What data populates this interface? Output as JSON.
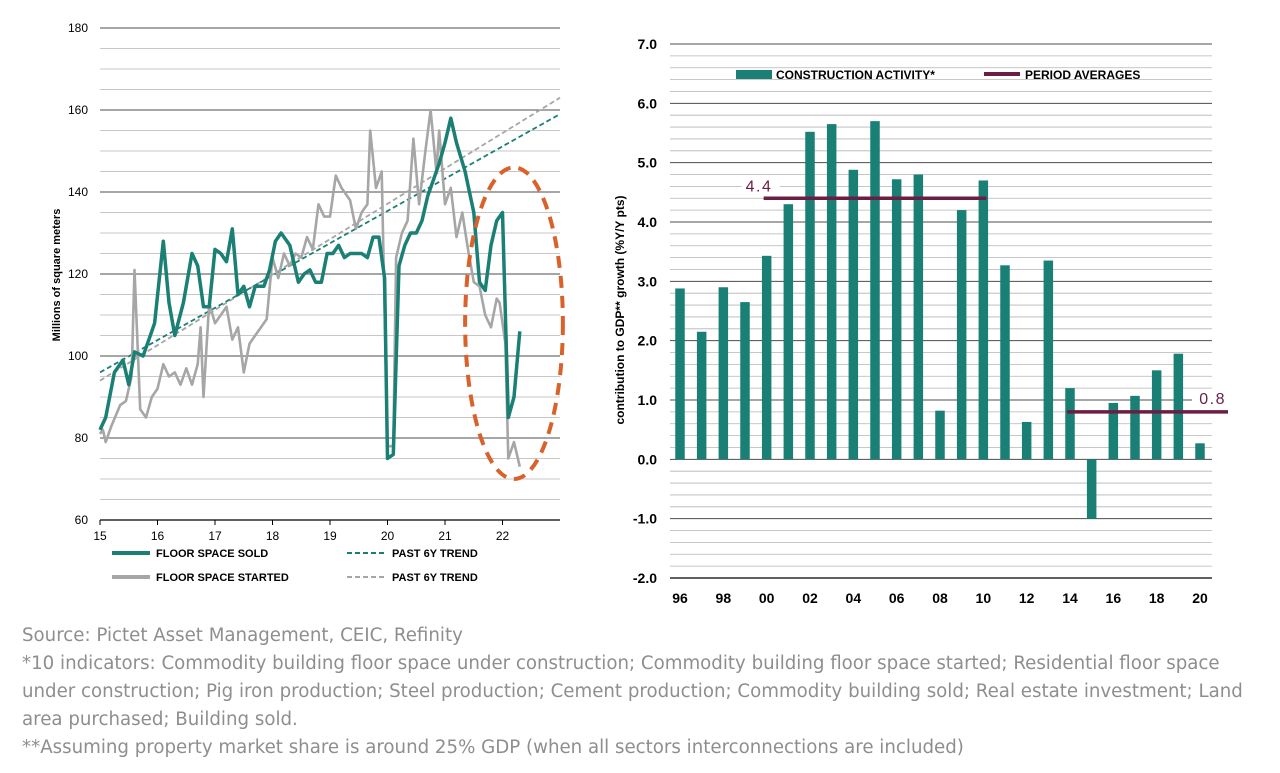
{
  "chart_data": [
    {
      "type": "line",
      "title": "",
      "xlabel": "",
      "ylabel": "Millions of square meters",
      "xlim": [
        15,
        23
      ],
      "ylim": [
        60,
        180
      ],
      "x_ticks": [
        15,
        16,
        17,
        18,
        19,
        20,
        21,
        22
      ],
      "x_tick_labels": [
        "15",
        "16",
        "17",
        "18",
        "19",
        "20",
        "21",
        "22"
      ],
      "y_ticks": [
        60,
        80,
        100,
        120,
        140,
        160,
        180
      ],
      "grid": true,
      "legend_position": "bottom",
      "colors": {
        "sold": "#1a7f74",
        "started": "#a6a6a6",
        "highlight": "#d9612a"
      },
      "series": [
        {
          "name": "FLOOR SPACE SOLD",
          "style": "solid",
          "points": [
            [
              15.0,
              82
            ],
            [
              15.1,
              85
            ],
            [
              15.25,
              96
            ],
            [
              15.4,
              99
            ],
            [
              15.5,
              93
            ],
            [
              15.6,
              101
            ],
            [
              15.75,
              100
            ],
            [
              15.85,
              104
            ],
            [
              15.95,
              108
            ],
            [
              16.1,
              128
            ],
            [
              16.2,
              113
            ],
            [
              16.3,
              105
            ],
            [
              16.45,
              113
            ],
            [
              16.6,
              125
            ],
            [
              16.7,
              122
            ],
            [
              16.8,
              112
            ],
            [
              16.9,
              112
            ],
            [
              17.0,
              126
            ],
            [
              17.1,
              125
            ],
            [
              17.2,
              123
            ],
            [
              17.3,
              131
            ],
            [
              17.4,
              115
            ],
            [
              17.5,
              117
            ],
            [
              17.6,
              112
            ],
            [
              17.7,
              117
            ],
            [
              17.85,
              117
            ],
            [
              17.95,
              121
            ],
            [
              18.05,
              128
            ],
            [
              18.15,
              130
            ],
            [
              18.3,
              127
            ],
            [
              18.45,
              118
            ],
            [
              18.55,
              120
            ],
            [
              18.65,
              121
            ],
            [
              18.75,
              118
            ],
            [
              18.85,
              118
            ],
            [
              18.95,
              125
            ],
            [
              19.05,
              125
            ],
            [
              19.15,
              127
            ],
            [
              19.25,
              124
            ],
            [
              19.35,
              125
            ],
            [
              19.45,
              125
            ],
            [
              19.55,
              125
            ],
            [
              19.65,
              124
            ],
            [
              19.75,
              129
            ],
            [
              19.85,
              129
            ],
            [
              19.95,
              119
            ],
            [
              20.0,
              75
            ],
            [
              20.1,
              76
            ],
            [
              20.2,
              122
            ],
            [
              20.3,
              127
            ],
            [
              20.4,
              130
            ],
            [
              20.5,
              130
            ],
            [
              20.6,
              133
            ],
            [
              20.7,
              139
            ],
            [
              20.8,
              143
            ],
            [
              20.9,
              147
            ],
            [
              21.0,
              152
            ],
            [
              21.1,
              158
            ],
            [
              21.2,
              152
            ],
            [
              21.35,
              145
            ],
            [
              21.5,
              135
            ],
            [
              21.6,
              118
            ],
            [
              21.7,
              116
            ],
            [
              21.8,
              127
            ],
            [
              21.9,
              133
            ],
            [
              22.0,
              135
            ],
            [
              22.1,
              85
            ],
            [
              22.2,
              90
            ],
            [
              22.3,
              106
            ]
          ]
        },
        {
          "name": "FLOOR SPACE STARTED",
          "style": "solid",
          "points": [
            [
              15.0,
              81
            ],
            [
              15.05,
              82
            ],
            [
              15.1,
              79
            ],
            [
              15.2,
              83
            ],
            [
              15.35,
              88
            ],
            [
              15.45,
              89
            ],
            [
              15.55,
              95
            ],
            [
              15.6,
              121
            ],
            [
              15.7,
              87
            ],
            [
              15.8,
              85
            ],
            [
              15.9,
              90
            ],
            [
              16.0,
              92
            ],
            [
              16.1,
              98
            ],
            [
              16.2,
              95
            ],
            [
              16.3,
              96
            ],
            [
              16.4,
              93
            ],
            [
              16.5,
              97
            ],
            [
              16.6,
              93
            ],
            [
              16.7,
              98
            ],
            [
              16.75,
              107
            ],
            [
              16.8,
              90
            ],
            [
              16.9,
              113
            ],
            [
              17.0,
              108
            ],
            [
              17.1,
              110
            ],
            [
              17.2,
              112
            ],
            [
              17.3,
              104
            ],
            [
              17.4,
              107
            ],
            [
              17.5,
              96
            ],
            [
              17.6,
              103
            ],
            [
              17.7,
              105
            ],
            [
              17.8,
              107
            ],
            [
              17.9,
              109
            ],
            [
              18.0,
              124
            ],
            [
              18.1,
              119
            ],
            [
              18.2,
              125
            ],
            [
              18.3,
              122
            ],
            [
              18.4,
              125
            ],
            [
              18.5,
              124
            ],
            [
              18.6,
              129
            ],
            [
              18.7,
              126
            ],
            [
              18.8,
              137
            ],
            [
              18.9,
              134
            ],
            [
              19.0,
              134
            ],
            [
              19.1,
              144
            ],
            [
              19.2,
              141
            ],
            [
              19.35,
              138
            ],
            [
              19.45,
              131
            ],
            [
              19.55,
              135
            ],
            [
              19.65,
              137
            ],
            [
              19.7,
              155
            ],
            [
              19.8,
              141
            ],
            [
              19.9,
              145
            ],
            [
              20.0,
              78
            ],
            [
              20.1,
              78
            ],
            [
              20.15,
              124
            ],
            [
              20.25,
              130
            ],
            [
              20.35,
              133
            ],
            [
              20.45,
              153
            ],
            [
              20.55,
              137
            ],
            [
              20.65,
              149
            ],
            [
              20.75,
              160
            ],
            [
              20.85,
              145
            ],
            [
              20.9,
              155
            ],
            [
              21.0,
              137
            ],
            [
              21.1,
              141
            ],
            [
              21.2,
              129
            ],
            [
              21.3,
              135
            ],
            [
              21.4,
              126
            ],
            [
              21.5,
              118
            ],
            [
              21.6,
              117
            ],
            [
              21.7,
              110
            ],
            [
              21.8,
              107
            ],
            [
              21.9,
              114
            ],
            [
              21.95,
              113
            ],
            [
              22.0,
              108
            ],
            [
              22.05,
              103
            ],
            [
              22.1,
              75
            ],
            [
              22.2,
              79
            ],
            [
              22.3,
              73
            ]
          ]
        },
        {
          "name": "PAST 6Y TREND",
          "style": "dashed",
          "color_key": "sold",
          "points": [
            [
              15.0,
              96
            ],
            [
              23.0,
              159
            ]
          ]
        },
        {
          "name": "PAST 6Y TREND",
          "style": "dashed",
          "color_key": "started",
          "points": [
            [
              15.0,
              94
            ],
            [
              23.0,
              163
            ]
          ]
        }
      ],
      "annotations": [
        {
          "type": "ellipse",
          "center": [
            22.2,
            108
          ],
          "radii": [
            0.85,
            38
          ],
          "style": "dashed"
        }
      ]
    },
    {
      "type": "bar",
      "title": "",
      "xlabel": "",
      "ylabel": "contribution to GDP** growth (%Y/Y pts)",
      "ylim": [
        -2.0,
        7.0
      ],
      "y_ticks": [
        -2.0,
        -1.0,
        0.0,
        1.0,
        2.0,
        3.0,
        4.0,
        5.0,
        6.0,
        7.0
      ],
      "y_tick_labels": [
        "-2.0",
        "-1.0",
        "0.0",
        "1.0",
        "2.0",
        "3.0",
        "4.0",
        "5.0",
        "6.0",
        "7.0"
      ],
      "x_tick_labels": [
        "96",
        "98",
        "00",
        "02",
        "04",
        "06",
        "08",
        "10",
        "12",
        "14",
        "16",
        "18",
        "20"
      ],
      "grid": true,
      "legend_position": "top",
      "colors": {
        "bars": "#1a7f74",
        "averages": "#6b1d44"
      },
      "categories": [
        "96",
        "97",
        "98",
        "99",
        "00",
        "01",
        "02",
        "03",
        "04",
        "05",
        "06",
        "07",
        "08",
        "09",
        "10",
        "11",
        "12",
        "13",
        "14",
        "15",
        "16",
        "17",
        "18",
        "19",
        "20"
      ],
      "series": [
        {
          "name": "CONSTRUCTION ACTIVITY*",
          "values": [
            2.88,
            2.15,
            2.9,
            2.65,
            3.43,
            4.3,
            5.52,
            5.65,
            4.88,
            5.7,
            4.72,
            4.8,
            0.82,
            4.2,
            4.7,
            3.27,
            0.63,
            3.35,
            1.2,
            -1.0,
            0.95,
            1.07,
            1.5,
            1.78,
            0.27
          ]
        },
        {
          "name": "PERIOD AVERAGES",
          "segments": [
            {
              "from": "00",
              "to": "10",
              "value": 4.4,
              "label": "4.4"
            },
            {
              "from": "14",
              "to": "20",
              "value": 0.8,
              "label": "0.8"
            }
          ]
        }
      ]
    }
  ],
  "legend_left": {
    "sold": "FLOOR SPACE SOLD",
    "trend_sold": "PAST 6Y TREND",
    "started": "FLOOR SPACE STARTED",
    "trend_started": "PAST 6Y TREND"
  },
  "legend_right": {
    "bars": "CONSTRUCTION ACTIVITY*",
    "averages": "PERIOD AVERAGES"
  },
  "footnotes": {
    "source": "Source: Pictet Asset Management, CEIC, Refinity",
    "note1": "*10 indicators: Commodity building floor space under construction; Commodity building floor space started; Residential floor space under construction; Pig iron production; Steel production; Cement production; Commodity building sold; Real estate investment; Land area purchased; Building sold.",
    "note2": "**Assuming property market share is around 25% GDP (when all sectors interconnections are included)"
  }
}
